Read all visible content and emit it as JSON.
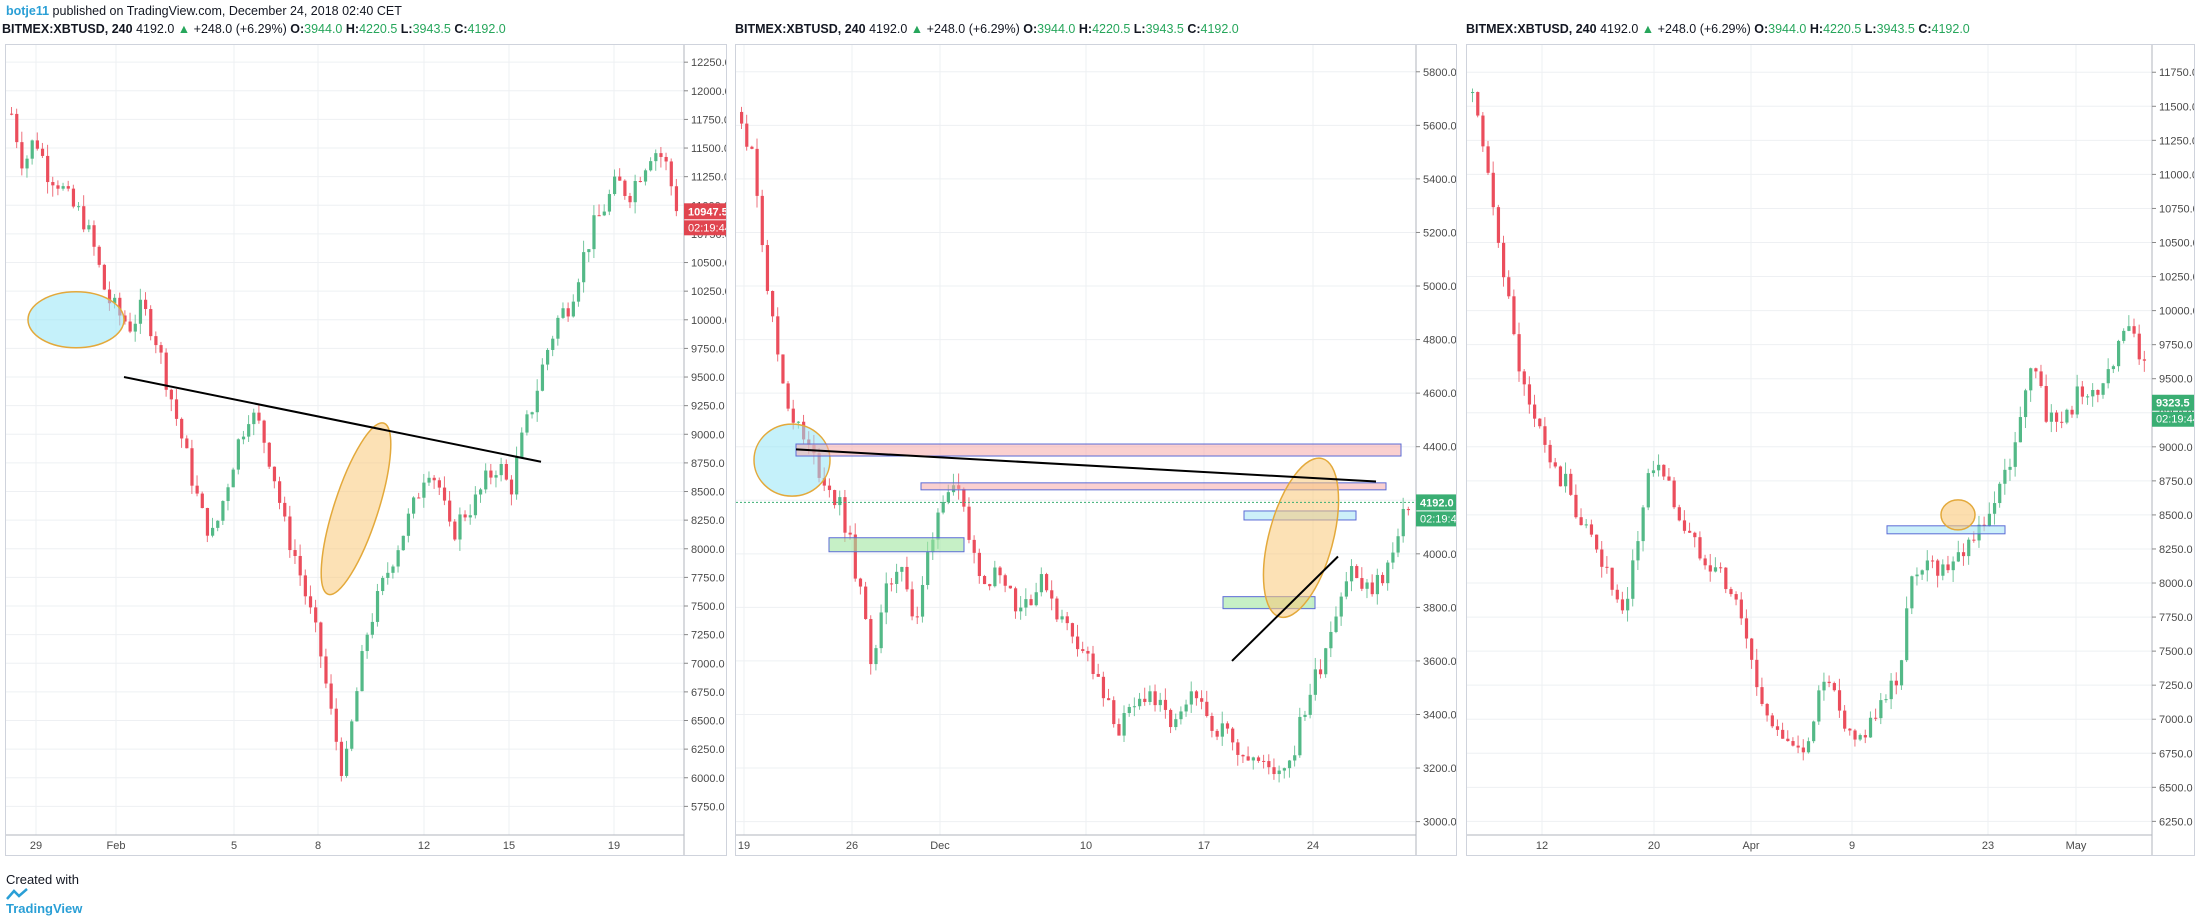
{
  "header": {
    "user": "botje11",
    "text": " published on TradingView.com, December 24, 2018 02:40 CET"
  },
  "footer": {
    "prefix": "Created with",
    "brand": "TradingView"
  },
  "symbol_info": {
    "symbol": "BITMEX:XBTUSD, 240",
    "last": "4192.0",
    "change": "+248.0 (+6.29%)",
    "o_label": "O:",
    "o": "3944.0",
    "h_label": "H:",
    "h": "4220.5",
    "l_label": "L:",
    "l": "3943.5",
    "c_label": "C:",
    "c": "4192.0"
  },
  "colors": {
    "up": "#53b987",
    "down": "#eb4d5c",
    "grid": "#eef0f3",
    "badge_red": "#e0454f",
    "badge_green": "#3aae73"
  },
  "chart_data": [
    {
      "type": "candlestick",
      "ylim": [
        5500,
        12400
      ],
      "y_ticks": [
        "12250.0",
        "12000.0",
        "11750.0",
        "11500.0",
        "11250.0",
        "11000.0",
        "10750.0",
        "10500.0",
        "10250.0",
        "10000.0",
        "9750.0",
        "9500.0",
        "9250.0",
        "9000.0",
        "8750.0",
        "8500.0",
        "8250.0",
        "8000.0",
        "7750.0",
        "7500.0",
        "7250.0",
        "7000.0",
        "6750.0",
        "6500.0",
        "6250.0",
        "6000.0",
        "5750.0"
      ],
      "x_ticks": [
        "29",
        "Feb",
        "5",
        "8",
        "12",
        "15",
        "19"
      ],
      "price_badge": {
        "value": "10947.5",
        "timer": "02:19:44",
        "color": "red"
      },
      "series": [
        {
          "name": "",
          "close_path": [
            11800,
            11350,
            11600,
            11300,
            11200,
            11000,
            10900,
            10600,
            10200,
            10050,
            9950,
            10100,
            9900,
            9500,
            9100,
            8700,
            8300,
            8100,
            8500,
            8900,
            9200,
            9050,
            8700,
            8200,
            7900,
            7500,
            7100,
            6500,
            6000,
            6700,
            7300,
            7600,
            7900,
            8150,
            8400,
            8750,
            8550,
            8100,
            8300,
            8400,
            8600,
            8750,
            8500,
            8950,
            9300,
            9700,
            10000,
            10150,
            10500,
            10800,
            11000,
            11200,
            11100,
            11300,
            11500,
            11400,
            11000
          ]
        }
      ],
      "annotations": [
        "ellipse near 10000 (29-Feb)",
        "ellipse near 8400 (8-12)",
        "trendline 9500 to 8750"
      ]
    },
    {
      "type": "candlestick",
      "ylim": [
        2950,
        5900
      ],
      "y_ticks": [
        "5800.0",
        "5600.0",
        "5400.0",
        "5200.0",
        "5000.0",
        "4800.0",
        "4600.0",
        "4400.0",
        "4200.0",
        "4000.0",
        "3800.0",
        "3600.0",
        "3400.0",
        "3200.0",
        "3000.0"
      ],
      "x_ticks": [
        "19",
        "26",
        "Dec",
        "10",
        "17",
        "24"
      ],
      "price_badge": {
        "value": "4192.0",
        "timer": "02:19:44",
        "color": "green"
      },
      "series": [
        {
          "name": "",
          "close_path": [
            5650,
            5400,
            4900,
            4600,
            4450,
            4350,
            4250,
            4150,
            3900,
            3600,
            3850,
            4000,
            3700,
            4050,
            4250,
            4200,
            4000,
            3900,
            3950,
            3800,
            3850,
            3900,
            3750,
            3700,
            3600,
            3450,
            3350,
            3400,
            3500,
            3400,
            3350,
            3450,
            3400,
            3350,
            3300,
            3250,
            3200,
            3200,
            3250,
            3450,
            3600,
            3800,
            3950,
            3850,
            3900,
            4000,
            4192
          ]
        }
      ],
      "annotations": [
        "ellipse near 4350 (19-26)",
        "red box 4400",
        "red box 4250",
        "green box 4000",
        "blue box 4150",
        "green box 3820",
        "trendline 4390 to 4270",
        "trendline 3600 to 3990"
      ]
    },
    {
      "type": "candlestick",
      "ylim": [
        6150,
        11950
      ],
      "y_ticks": [
        "11750.0",
        "11500.0",
        "11250.0",
        "11000.0",
        "10750.0",
        "10500.0",
        "10250.0",
        "10000.0",
        "9750.0",
        "9500.0",
        "9250.0",
        "9000.0",
        "8750.0",
        "8500.0",
        "8250.0",
        "8000.0",
        "7750.0",
        "7500.0",
        "7250.0",
        "7000.0",
        "6750.0",
        "6500.0",
        "6250.0"
      ],
      "x_ticks": [
        "12",
        "20",
        "Apr",
        "9",
        "23",
        "May"
      ],
      "price_badge": {
        "value": "9323.5",
        "timer": "02:19:44",
        "color": "green"
      },
      "series": [
        {
          "name": "",
          "close_path": [
            11600,
            11000,
            10500,
            9800,
            9300,
            9100,
            8800,
            8700,
            8400,
            8300,
            8000,
            7700,
            8300,
            8900,
            8800,
            8500,
            8300,
            8200,
            8100,
            7900,
            7600,
            7100,
            7000,
            6800,
            6700,
            7100,
            7300,
            6900,
            6800,
            7000,
            7100,
            7300,
            8000,
            8200,
            8100,
            8200,
            8300,
            8400,
            8600,
            8800,
            9300,
            9600,
            9200,
            9100,
            9400,
            9300,
            9500,
            9700,
            9900,
            9600
          ]
        }
      ],
      "annotations": [
        "blue box 8400",
        "ellipse near 8500"
      ]
    }
  ]
}
